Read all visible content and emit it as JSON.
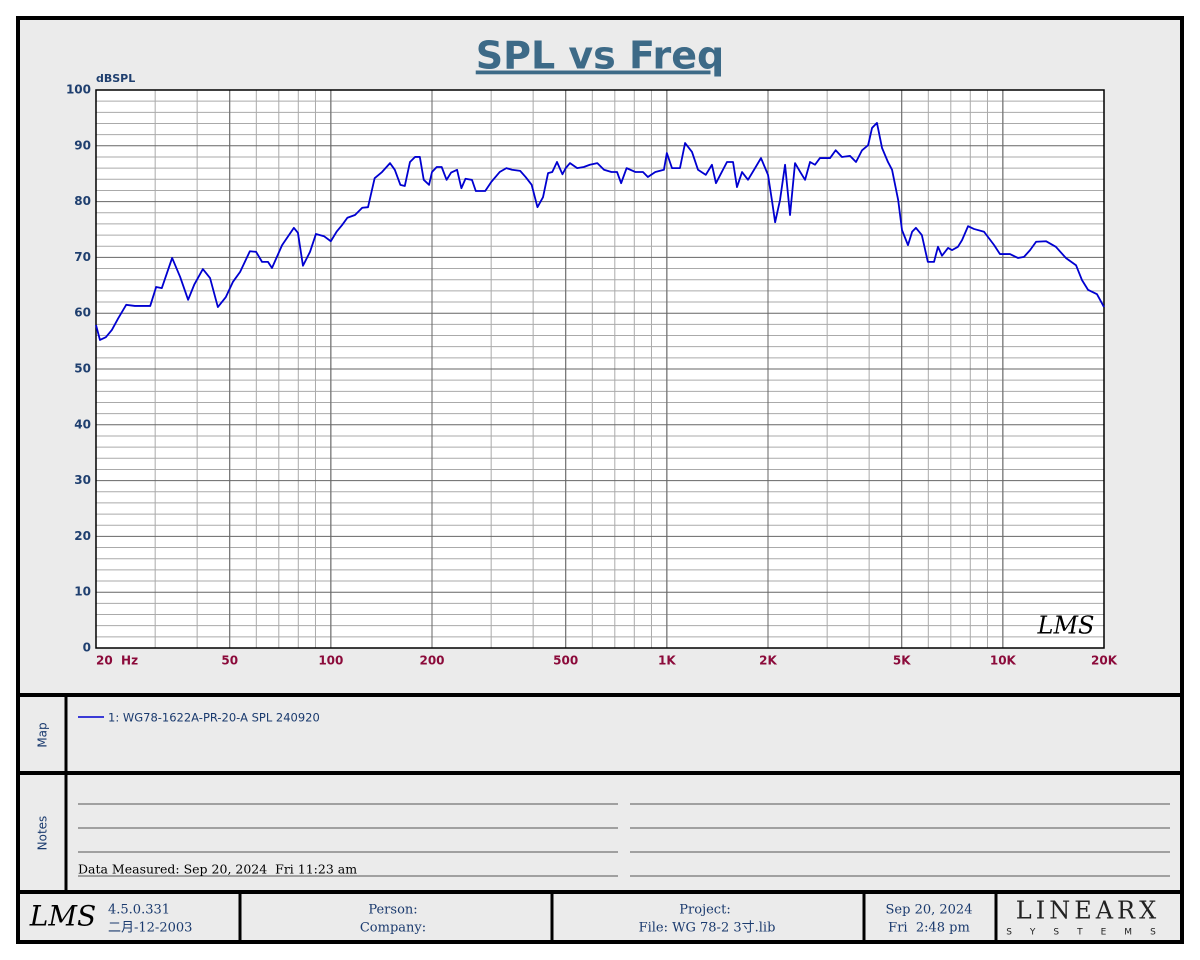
{
  "chart_data": {
    "type": "line",
    "title": "SPL vs Freq",
    "y_label": "dBSPL",
    "watermark": "LMS",
    "log_x": true,
    "grid": true,
    "xlim": [
      20,
      20000
    ],
    "ylim": [
      0,
      100
    ],
    "xticks": [
      {
        "value": 20,
        "label": "20  Hz"
      },
      50,
      100,
      200,
      500,
      {
        "value": 1000,
        "label": "1K"
      },
      {
        "value": 2000,
        "label": "2K"
      },
      {
        "value": 5000,
        "label": "5K"
      },
      {
        "value": 10000,
        "label": "10K"
      },
      {
        "value": 20000,
        "label": "20K"
      }
    ],
    "yticks": [
      0,
      10,
      20,
      30,
      40,
      50,
      60,
      70,
      80,
      90,
      100
    ],
    "x": [
      20,
      20.55,
      21.4,
      22.3,
      23.3,
      24.6,
      26.1,
      29,
      30.2,
      31.4,
      33.7,
      35.6,
      37.6,
      39.2,
      41.6,
      43.7,
      46.1,
      48.7,
      51.1,
      53.7,
      57.4,
      59.9,
      62.4,
      65,
      66.8,
      71.6,
      77.6,
      79.8,
      82.6,
      86.7,
      90.3,
      95.4,
      100,
      104,
      108,
      112,
      118,
      124,
      129,
      135,
      142,
      150,
      155,
      161,
      166,
      172,
      178,
      184,
      189,
      196,
      200,
      206.6,
      213.7,
      221,
      228,
      237.5,
      244.6,
      251.6,
      263,
      270,
      288,
      300,
      318,
      333,
      346,
      366,
      380,
      396,
      412,
      428,
      443,
      456,
      471,
      489,
      500,
      515,
      541,
      566,
      590,
      621,
      650,
      684,
      711,
      731,
      759,
      807,
      849,
      878,
      924,
      980,
      1000,
      1036,
      1094,
      1133,
      1188,
      1238,
      1306,
      1362,
      1400,
      1510,
      1574,
      1617,
      1674,
      1744,
      1830,
      1906,
      2000,
      2056,
      2100,
      2172,
      2248,
      2326,
      2407,
      2495,
      2578,
      2668,
      2760,
      2855,
      3060,
      3180,
      3320,
      3508,
      3656,
      3810,
      3972,
      4080,
      4220,
      4370,
      4550,
      4680,
      4880,
      5010,
      5220,
      5370,
      5510,
      5740,
      5980,
      6240,
      6410,
      6590,
      6870,
      7060,
      7350,
      7560,
      7880,
      8200,
      8790,
      9420,
      9800,
      10500,
      11090,
      11560,
      12050,
      12560,
      13440,
      14380,
      15400,
      16510,
      17210,
      17920,
      19060,
      20000
    ],
    "series": [
      {
        "name": "1: WG78-1622A-PR-20-A SPL 240920",
        "color": "#0000d0",
        "values": [
          57.9,
          55.2,
          55.7,
          57,
          59.1,
          61.5,
          61.3,
          61.3,
          64.7,
          64.5,
          69.9,
          66.5,
          62.4,
          65.1,
          67.9,
          66.3,
          61.1,
          62.9,
          65.6,
          67.4,
          71.1,
          71,
          69.2,
          69.2,
          68.1,
          72.2,
          75.3,
          74.4,
          68.5,
          71,
          74.2,
          73.8,
          72.9,
          74.6,
          75.8,
          77.1,
          77.6,
          78.9,
          79,
          84.2,
          85.3,
          86.9,
          85.7,
          83,
          82.8,
          87.1,
          88,
          88,
          83.9,
          83,
          85.3,
          86.2,
          86.2,
          83.9,
          85.2,
          85.7,
          82.4,
          84.1,
          83.9,
          81.9,
          81.9,
          83.5,
          85.3,
          86,
          85.7,
          85.5,
          84.4,
          83,
          79,
          80.8,
          85.1,
          85.3,
          87.1,
          84.9,
          86,
          86.9,
          86,
          86.2,
          86.6,
          86.9,
          85.7,
          85.3,
          85.3,
          83.3,
          86,
          85.3,
          85.3,
          84.4,
          85.3,
          85.7,
          88.7,
          86,
          86,
          90.5,
          88.9,
          85.7,
          84.8,
          86.6,
          83.3,
          87.1,
          87.1,
          82.6,
          85.3,
          83.9,
          86,
          87.8,
          84.8,
          80.1,
          76.3,
          80.3,
          86.6,
          77.6,
          86.9,
          85.3,
          83.9,
          87.1,
          86.6,
          87.8,
          87.8,
          89.2,
          88,
          88.2,
          87.1,
          89.2,
          90.1,
          93.2,
          94.1,
          89.6,
          87.1,
          85.7,
          80.3,
          74.9,
          72.2,
          74.6,
          75.3,
          74,
          69.2,
          69.2,
          71.9,
          70.3,
          71.7,
          71.3,
          71.9,
          73.1,
          75.6,
          75.1,
          74.6,
          72.2,
          70.6,
          70.6,
          69.9,
          70.1,
          71.3,
          72.8,
          72.9,
          71.9,
          69.9,
          68.6,
          65.9,
          64.2,
          63.4,
          61.1
        ]
      }
    ]
  },
  "map": {
    "label": "Map"
  },
  "notes": {
    "label": "Notes",
    "measured": "Data Measured: Sep 20, 2024  Fri 11:23 am"
  },
  "footer": {
    "logo": "LMS",
    "version": "4.5.0.331",
    "build_date": "二月-12-2003",
    "person": "Person:",
    "company": "Company:",
    "project": "Project:",
    "file": "File: WG 78-2 3寸.lib",
    "date": "Sep 20, 2024",
    "time": "Fri  2:48 pm",
    "brand": "LINEARX",
    "brand_sub": "SYSTEMS"
  }
}
